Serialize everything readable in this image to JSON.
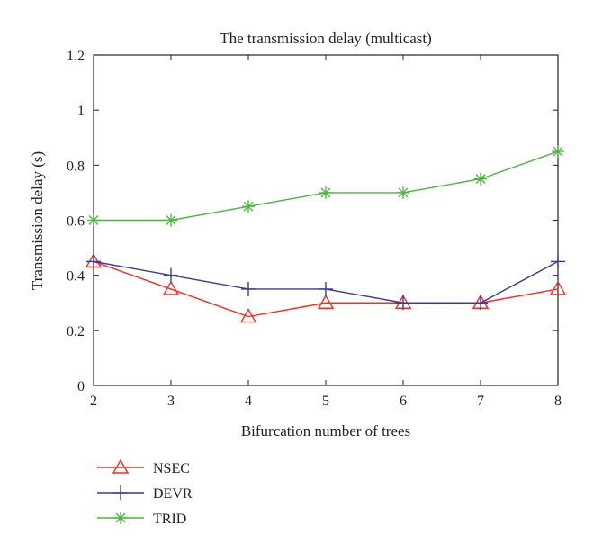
{
  "chart_data": {
    "type": "line",
    "title": "The transmission delay (multicast)",
    "xlabel": "Bifurcation number of trees",
    "ylabel": "Transmission delay (s)",
    "x": [
      2,
      3,
      4,
      5,
      6,
      7,
      8
    ],
    "xlim": [
      2,
      8
    ],
    "ylim": [
      0,
      1.2
    ],
    "yticks": [
      0,
      0.2,
      0.4,
      0.6,
      0.8,
      1,
      1.2
    ],
    "ytick_labels": [
      "0",
      "0.2",
      "0.4",
      "0.6",
      "0.8",
      "1",
      "1.2"
    ],
    "xtick_labels": [
      "2",
      "3",
      "4",
      "5",
      "6",
      "7",
      "8"
    ],
    "grid": false,
    "legend_position": "bottom-left",
    "series": [
      {
        "name": "NSEC",
        "marker": "triangle",
        "color": "#ff2a1a",
        "values": [
          0.45,
          0.35,
          0.25,
          0.3,
          0.3,
          0.3,
          0.35
        ]
      },
      {
        "name": "DEVR",
        "marker": "plus",
        "color": "#3a3a9c",
        "values": [
          0.45,
          0.4,
          0.35,
          0.35,
          0.3,
          0.3,
          0.45
        ]
      },
      {
        "name": "TRID",
        "marker": "asterisk",
        "color": "#47b83a",
        "values": [
          0.6,
          0.6,
          0.65,
          0.7,
          0.7,
          0.75,
          0.85
        ]
      }
    ]
  }
}
